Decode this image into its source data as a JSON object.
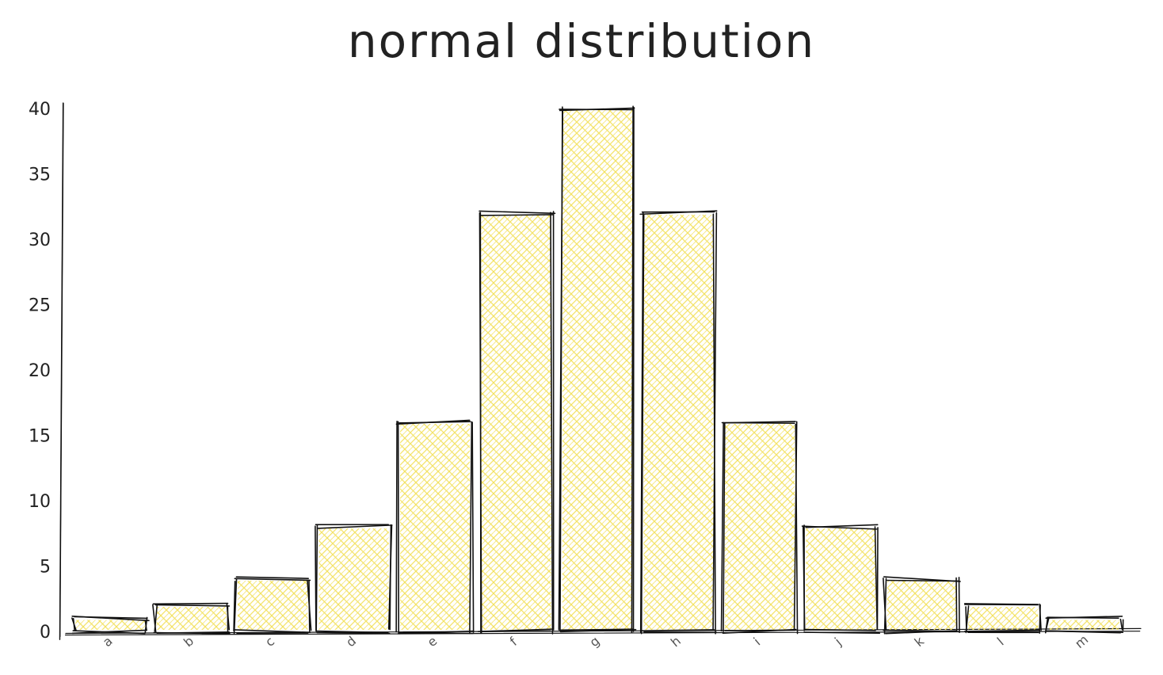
{
  "chart_data": {
    "type": "bar",
    "title": "normal distribution",
    "xlabel": "",
    "ylabel": "",
    "categories": [
      "a",
      "b",
      "c",
      "d",
      "e",
      "f",
      "g",
      "h",
      "i",
      "j",
      "k",
      "l",
      "m"
    ],
    "values": [
      1,
      2,
      4,
      8,
      16,
      32,
      40,
      32,
      16,
      8,
      4,
      2,
      1
    ],
    "ylim": [
      0,
      40
    ],
    "yticks": [
      0,
      5,
      10,
      15,
      20,
      25,
      30,
      35,
      40
    ],
    "grid": false,
    "style": "hand-drawn sketch with cross-hatched fill",
    "colors": {
      "fill": "#f3e05a",
      "stroke": "#111111"
    }
  }
}
